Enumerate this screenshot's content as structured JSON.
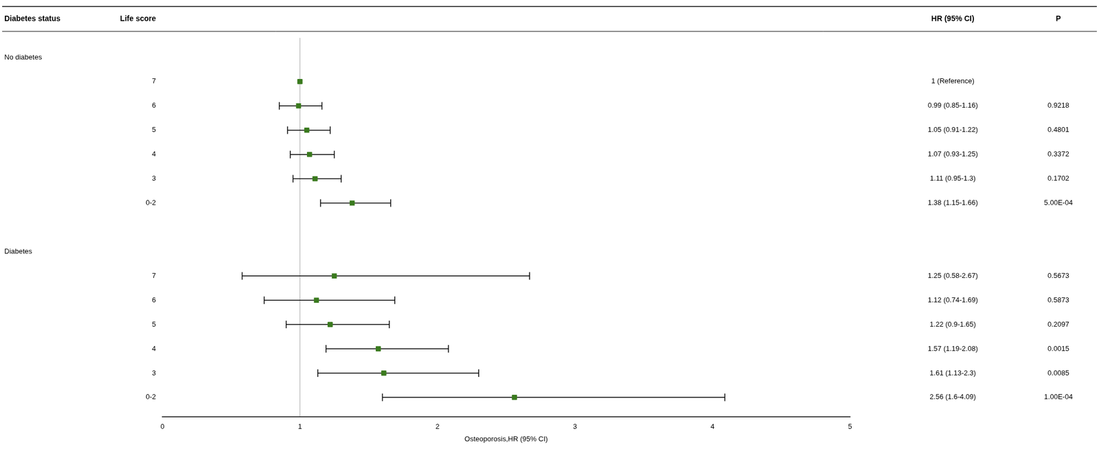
{
  "chart_data": {
    "type": "forest",
    "x_label": "Osteoporosis,HR (95% CI)",
    "xlim": [
      0,
      5
    ],
    "xticks": [
      0,
      1,
      2,
      3,
      4,
      5
    ],
    "reference_line": 1.0,
    "color": "#3a7a1e",
    "grid": false,
    "column_headers": [
      "Diabetes status",
      "Life score",
      "HR (95% CI)",
      "P"
    ],
    "groups": [
      {
        "name": "No diabetes",
        "categories": [
          "7",
          "6",
          "5",
          "4",
          "3",
          "0-2"
        ],
        "values": [
          1.0,
          0.99,
          1.05,
          1.07,
          1.11,
          1.38
        ],
        "ci_low": [
          1.0,
          0.85,
          0.91,
          0.93,
          0.95,
          1.15
        ],
        "ci_high": [
          1.0,
          1.16,
          1.22,
          1.25,
          1.3,
          1.66
        ],
        "value_labels": [
          "1 (Reference)",
          "0.99 (0.85-1.16)",
          "1.05 (0.91-1.22)",
          "1.07 (0.93-1.25)",
          "1.11 (0.95-1.3)",
          "1.38 (1.15-1.66)"
        ],
        "p_values": [
          null,
          "0.9218",
          "0.4801",
          "0.3372",
          "0.1702",
          "5.00E-04"
        ],
        "reference": [
          true,
          false,
          false,
          false,
          false,
          false
        ]
      },
      {
        "name": "Diabetes",
        "categories": [
          "7",
          "6",
          "5",
          "4",
          "3",
          "0-2"
        ],
        "values": [
          1.25,
          1.12,
          1.22,
          1.57,
          1.61,
          2.56
        ],
        "ci_low": [
          0.58,
          0.74,
          0.9,
          1.19,
          1.13,
          1.6
        ],
        "ci_high": [
          2.67,
          1.69,
          1.65,
          2.08,
          2.3,
          4.09
        ],
        "value_labels": [
          "1.25 (0.58-2.67)",
          "1.12 (0.74-1.69)",
          "1.22 (0.9-1.65)",
          "1.57 (1.19-2.08)",
          "1.61 (1.13-2.3)",
          "2.56 (1.6-4.09)"
        ],
        "p_values": [
          "0.5673",
          "0.5873",
          "0.2097",
          "0.0015",
          "0.0085",
          "1.00E-04"
        ],
        "reference": [
          false,
          false,
          false,
          false,
          false,
          false
        ]
      }
    ]
  }
}
